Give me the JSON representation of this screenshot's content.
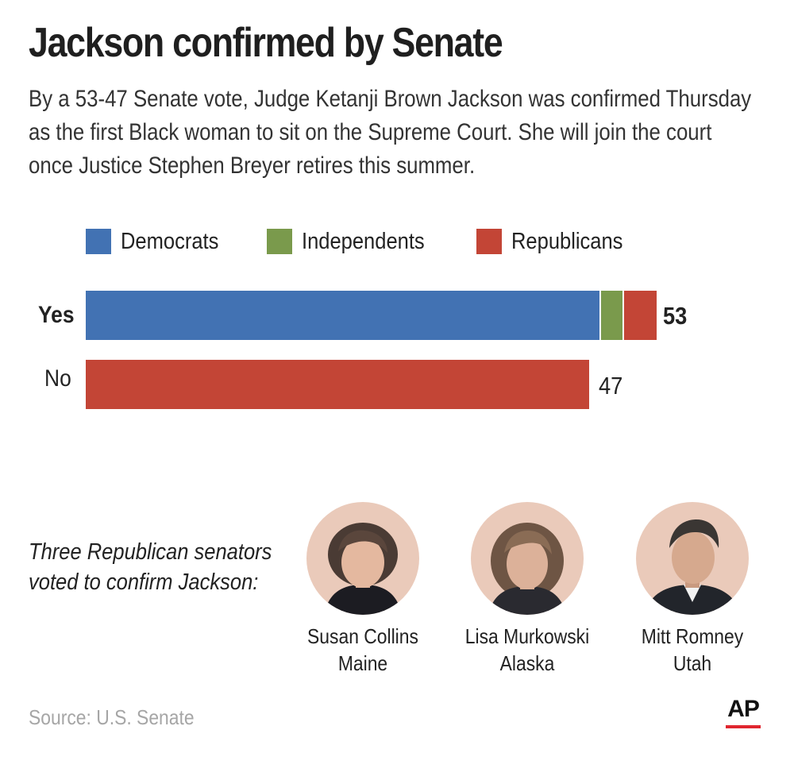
{
  "header": {
    "title": "Jackson confirmed by Senate",
    "subtitle": "By a 53-47 Senate vote, Judge Ketanji Brown Jackson was confirmed Thursday as the first Black woman to sit on the Supreme Court. She will join the court once Justice Stephen Breyer retires this summer."
  },
  "chart_data": {
    "type": "bar",
    "orientation": "horizontal",
    "stacked": true,
    "categories": [
      "Yes",
      "No"
    ],
    "series": [
      {
        "name": "Democrats",
        "color": "#4272b3",
        "values": [
          48,
          0
        ]
      },
      {
        "name": "Independents",
        "color": "#7a9a4c",
        "values": [
          2,
          0
        ]
      },
      {
        "name": "Republicans",
        "color": "#c34536",
        "values": [
          3,
          47
        ]
      }
    ],
    "totals": [
      "53",
      "47"
    ],
    "xlim": [
      0,
      58
    ],
    "grid": false,
    "legend_position": "top-left"
  },
  "senators": {
    "caption_line1": "Three Republican senators",
    "caption_line2": "voted to confirm Jackson:",
    "people": [
      {
        "name": "Susan Collins",
        "state": "Maine"
      },
      {
        "name": "Lisa Murkowski",
        "state": "Alaska"
      },
      {
        "name": "Mitt Romney",
        "state": "Utah"
      }
    ]
  },
  "footer": {
    "source": "Source: U.S. Senate",
    "logo_text": "AP",
    "logo_accent_color": "#e0262f"
  }
}
